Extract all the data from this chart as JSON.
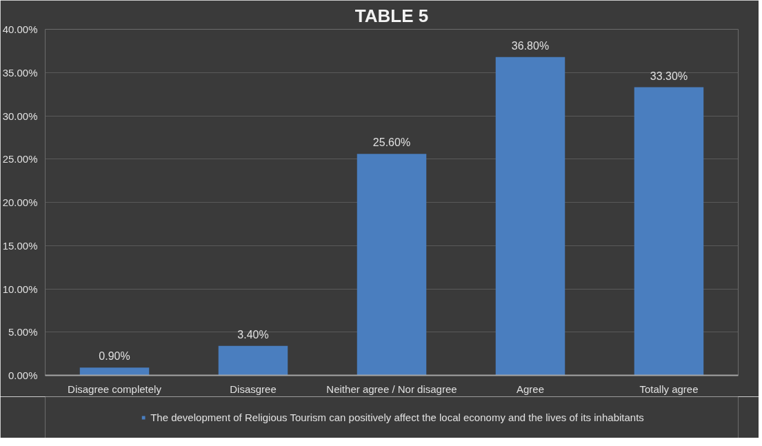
{
  "chart_data": {
    "type": "bar",
    "title": "TABLE 5",
    "categories": [
      "Disagree completely",
      "Disasgree",
      "Neither agree / Nor disagree",
      "Agree",
      "Totally agree"
    ],
    "series": [
      {
        "name": "The development of Religious Tourism can positively affect the local economy and the lives of its inhabitants",
        "color": "#4a7ebf",
        "values": [
          0.9,
          3.4,
          25.6,
          36.8,
          33.3
        ],
        "value_labels": [
          "0.90%",
          "3.40%",
          "25.60%",
          "36.80%",
          "33.30%"
        ]
      }
    ],
    "ylim": [
      0,
      40
    ],
    "yticks": [
      {
        "value": 0,
        "label": "0.00%"
      },
      {
        "value": 5,
        "label": "5.00%"
      },
      {
        "value": 10,
        "label": "10.00%"
      },
      {
        "value": 15,
        "label": "15.00%"
      },
      {
        "value": 20,
        "label": "20.00%"
      },
      {
        "value": 25,
        "label": "25.00%"
      },
      {
        "value": 30,
        "label": "30.00%"
      },
      {
        "value": 35,
        "label": "35.00%"
      },
      {
        "value": 40,
        "label": "40.00%"
      }
    ],
    "grid": "y",
    "legend": "bottom"
  }
}
